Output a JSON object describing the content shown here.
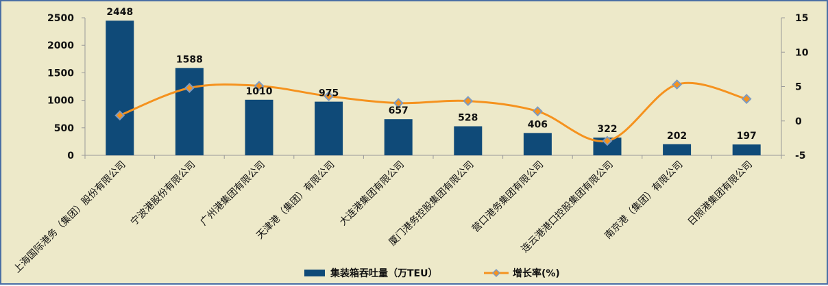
{
  "chart_data": {
    "type": "bar",
    "categories": [
      "上海国际港务（集团）股份有限公司",
      "宁波港股份有限公司",
      "广州港集团有限公司",
      "天津港（集团）有限公司",
      "大连港集团有限公司",
      "厦门港务控股集团有限公司",
      "营口港务集团有限公司",
      "连云港港口控股集团有限公司",
      "南京港（集团）有限公司",
      "日照港集团有限公司"
    ],
    "series": [
      {
        "name": "集装箱吞吐量（万TEU）",
        "type": "bar",
        "axis": "left",
        "color": "#0f4a78",
        "values": [
          2448,
          1588,
          1010,
          975,
          657,
          528,
          406,
          322,
          202,
          197
        ],
        "labels": [
          "2448",
          "1588",
          "1010",
          "975",
          "657",
          "528",
          "406",
          "322",
          "202",
          "197"
        ]
      },
      {
        "name": "增长率(%)",
        "type": "line",
        "axis": "right",
        "color": "#f5921e",
        "marker_color": "#7d9ac0",
        "values": [
          0.8,
          4.8,
          5.1,
          3.6,
          2.6,
          2.9,
          1.4,
          -2.9,
          5.3,
          3.2
        ]
      }
    ],
    "y_left": {
      "min": 0,
      "max": 2500,
      "ticks": [
        0,
        500,
        1000,
        1500,
        2000,
        2500
      ]
    },
    "y_right": {
      "min": -5,
      "max": 15,
      "ticks": [
        -5,
        0,
        5,
        10,
        15
      ]
    },
    "title": "",
    "xlabel": "",
    "ylabel": "",
    "grid": false,
    "legend_position": "bottom"
  },
  "colors": {
    "background": "#ede9c9",
    "border": "#4a6fa5",
    "axis": "#999999"
  }
}
